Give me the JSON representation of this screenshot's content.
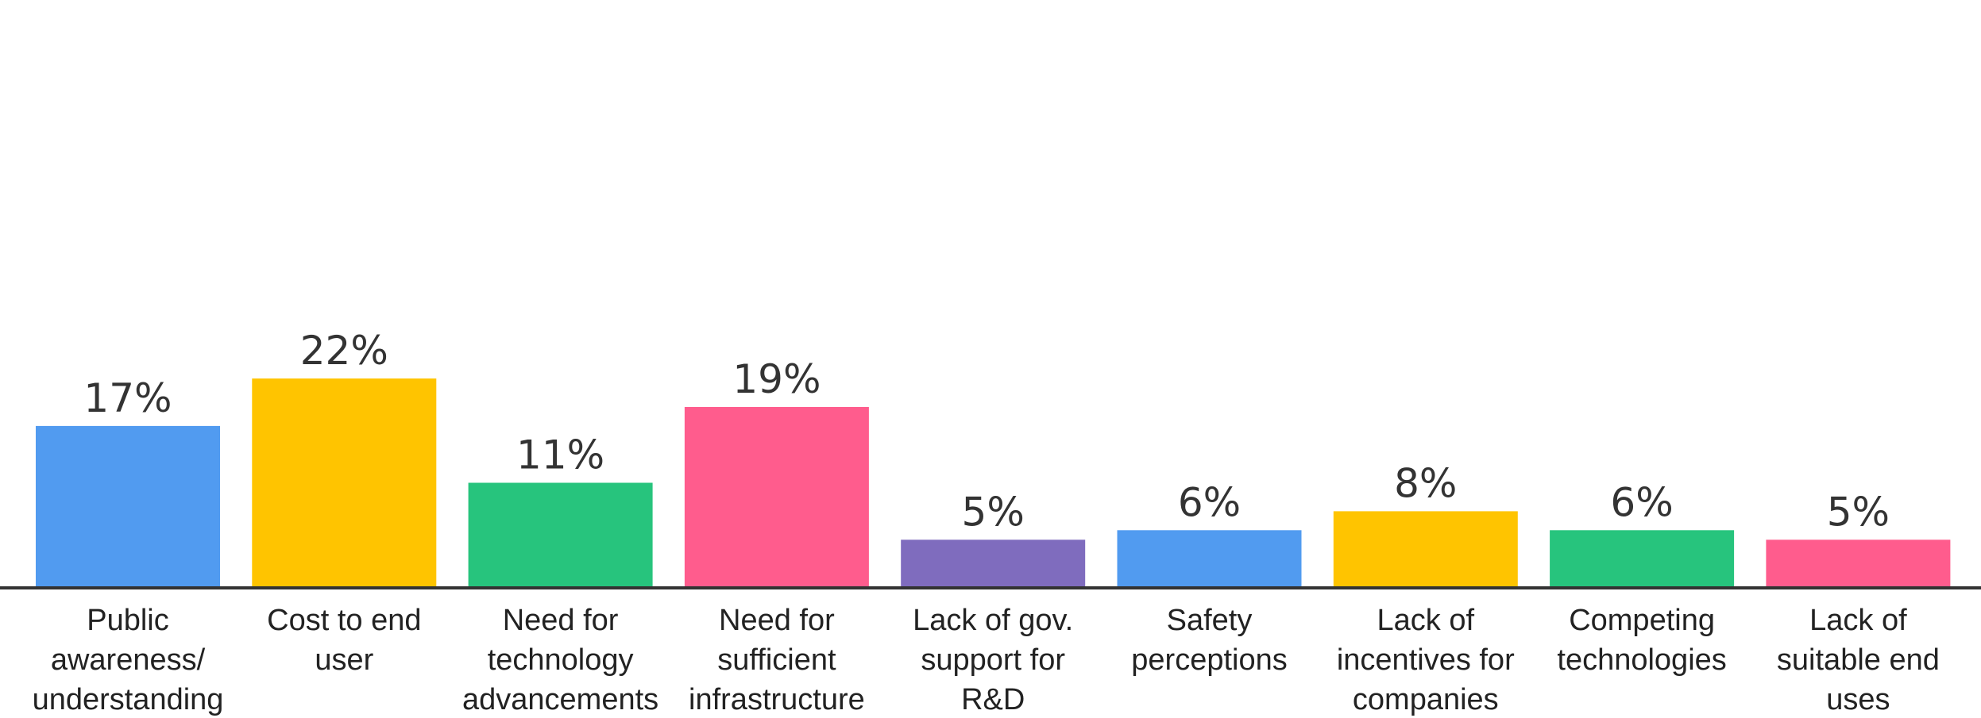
{
  "chart_data": {
    "type": "bar",
    "categories": [
      [
        "Public",
        "awareness/",
        "understanding"
      ],
      [
        "Cost to end",
        "user"
      ],
      [
        "Need for",
        "technology",
        "advancements"
      ],
      [
        "Need for",
        "sufficient",
        "infrastructure"
      ],
      [
        "Lack of gov.",
        "support for",
        "R&D"
      ],
      [
        "Safety",
        "perceptions"
      ],
      [
        "Lack of",
        "incentives for",
        "companies"
      ],
      [
        "Competing",
        "technologies"
      ],
      [
        "Lack of",
        "suitable end",
        "uses"
      ]
    ],
    "values": [
      17,
      22,
      11,
      19,
      5,
      6,
      8,
      6,
      5
    ],
    "value_labels": [
      "17%",
      "22%",
      "11%",
      "19%",
      "5%",
      "6%",
      "8%",
      "6%",
      "5%"
    ],
    "bar_colors": [
      "#519BF0",
      "#FFC400",
      "#27C47D",
      "#FF5C8D",
      "#7F6CBE",
      "#519BF0",
      "#FFC400",
      "#27C47D",
      "#FF5C8D"
    ],
    "ylim": [
      0,
      25
    ],
    "grid": false,
    "legend": "none"
  }
}
